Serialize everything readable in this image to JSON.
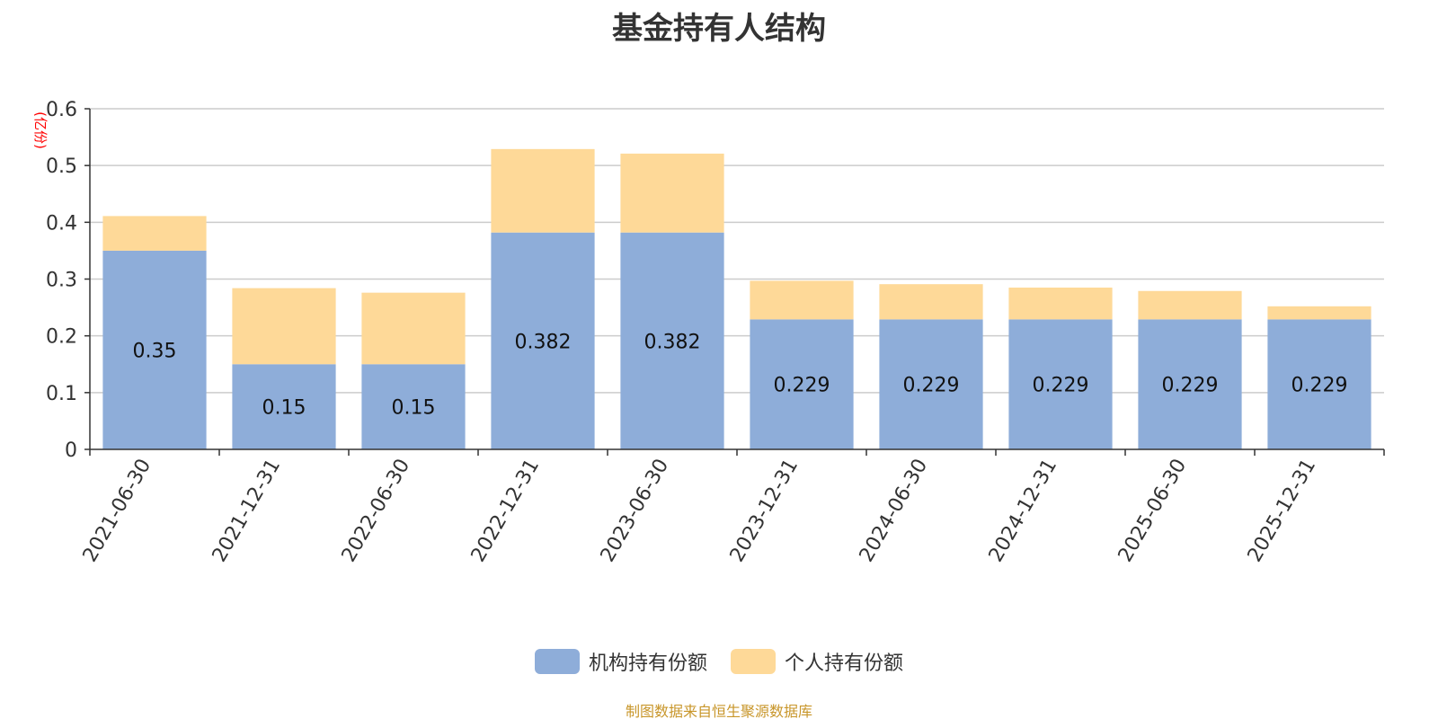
{
  "chart_data": {
    "type": "bar",
    "stacked": true,
    "title": "基金持有人结构",
    "ylabel": "(亿份)",
    "xlabel": "",
    "ylim": [
      0,
      0.6
    ],
    "yticks": [
      0,
      0.1,
      0.2,
      0.3,
      0.4,
      0.5,
      0.6
    ],
    "ytick_labels": [
      "0",
      "0.1",
      "0.2",
      "0.3",
      "0.4",
      "0.5",
      "0.6"
    ],
    "grid": true,
    "legend_position": "bottom-center",
    "categories": [
      "2021-06-30",
      "2021-12-31",
      "2022-06-30",
      "2022-12-31",
      "2023-06-30",
      "2023-12-31",
      "2024-06-30",
      "2024-12-31",
      "2025-06-30",
      "2025-12-31"
    ],
    "series": [
      {
        "name": "机构持有份额",
        "color": "#8eadd9",
        "values": [
          0.35,
          0.15,
          0.15,
          0.382,
          0.382,
          0.229,
          0.229,
          0.229,
          0.229,
          0.229
        ],
        "data_labels": [
          "0.35",
          "0.15",
          "0.15",
          "0.382",
          "0.382",
          "0.229",
          "0.229",
          "0.229",
          "0.229",
          "0.229"
        ]
      },
      {
        "name": "个人持有份额",
        "color": "#fed998",
        "values": [
          0.061,
          0.134,
          0.126,
          0.147,
          0.139,
          0.068,
          0.062,
          0.056,
          0.05,
          0.023
        ]
      }
    ]
  },
  "footer": {
    "source": "制图数据来自恒生聚源数据库"
  },
  "colors": {
    "grid": "#cccccc",
    "axis": "#333333",
    "ylabel": "#ff0000"
  }
}
